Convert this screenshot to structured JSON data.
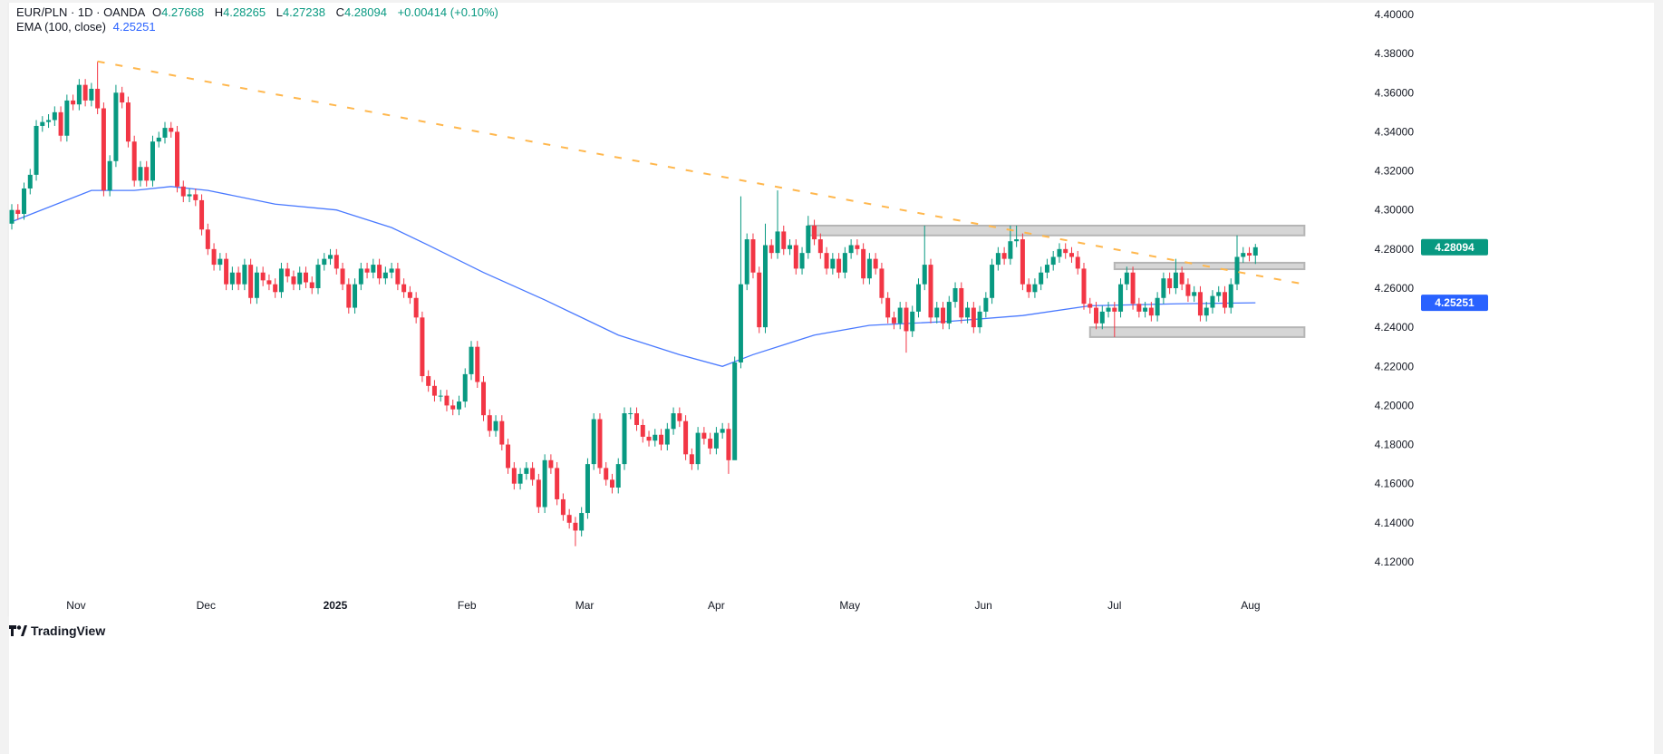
{
  "header": {
    "symbol": "EUR/PLN · 1D · OANDA",
    "open_label": "O",
    "open": "4.27668",
    "high_label": "H",
    "high": "4.28265",
    "low_label": "L",
    "low": "4.27238",
    "close_label": "C",
    "close": "4.28094",
    "change": "+0.00414 (+0.10%)",
    "ema_label": "EMA (100, close)",
    "ema_value": "4.25251"
  },
  "branding": {
    "logo_text": "TradingView"
  },
  "colors": {
    "up": "#089981",
    "down": "#f23645",
    "ema": "#2962ff",
    "trendline": "#ffb74d",
    "zone": "#d6d6d6"
  },
  "chart_data": {
    "type": "candlestick",
    "title": "EUR/PLN · 1D · OANDA",
    "ylim": [
      4.1,
      4.4
    ],
    "y_ticks": [
      "4.40000",
      "4.38000",
      "4.36000",
      "4.34000",
      "4.32000",
      "4.30000",
      "4.28000",
      "4.26000",
      "4.24000",
      "4.22000",
      "4.20000",
      "4.18000",
      "4.16000",
      "4.14000",
      "4.12000"
    ],
    "x_labels": [
      {
        "label": "Nov",
        "bar": 10.5
      },
      {
        "label": "Dec",
        "bar": 31.7
      },
      {
        "label": "2025",
        "bar": 52.8,
        "bold": true
      },
      {
        "label": "Feb",
        "bar": 74.3
      },
      {
        "label": "Mar",
        "bar": 93.5
      },
      {
        "label": "Apr",
        "bar": 115
      },
      {
        "label": "May",
        "bar": 136.8
      },
      {
        "label": "Jun",
        "bar": 158.6
      },
      {
        "label": "Jul",
        "bar": 180
      },
      {
        "label": "Aug",
        "bar": 202.2
      }
    ],
    "first_open": 4.293,
    "close": [
      4.3,
      4.298,
      4.311,
      4.318,
      4.343,
      4.345,
      4.346,
      4.35,
      4.338,
      4.356,
      4.354,
      4.364,
      4.356,
      4.362,
      4.352,
      4.31,
      4.325,
      4.36,
      4.355,
      4.335,
      4.315,
      4.322,
      4.315,
      4.335,
      4.337,
      4.342,
      4.34,
      4.312,
      4.307,
      4.308,
      4.305,
      4.29,
      4.28,
      4.272,
      4.275,
      4.262,
      4.268,
      4.262,
      4.272,
      4.255,
      4.268,
      4.264,
      4.262,
      4.258,
      4.27,
      4.266,
      4.262,
      4.268,
      4.263,
      4.26,
      4.272,
      4.275,
      4.277,
      4.27,
      4.262,
      4.25,
      4.262,
      4.27,
      4.268,
      4.272,
      4.265,
      4.268,
      4.27,
      4.262,
      4.258,
      4.255,
      4.245,
      4.215,
      4.21,
      4.205,
      4.205,
      4.2,
      4.198,
      4.202,
      4.216,
      4.23,
      4.212,
      4.195,
      4.187,
      4.192,
      4.18,
      4.168,
      4.16,
      4.165,
      4.168,
      4.162,
      4.148,
      4.172,
      4.168,
      4.152,
      4.144,
      4.14,
      4.136,
      4.145,
      4.17,
      4.193,
      4.168,
      4.162,
      4.158,
      4.17,
      4.196,
      4.196,
      4.19,
      4.184,
      4.182,
      4.185,
      4.18,
      4.188,
      4.196,
      4.192,
      4.175,
      4.17,
      4.186,
      4.183,
      4.178,
      4.186,
      4.188,
      4.172,
      4.222,
      4.262,
      4.285,
      4.268,
      4.24,
      4.282,
      4.278,
      4.289,
      4.28,
      4.282,
      4.27,
      4.278,
      4.292,
      4.285,
      4.278,
      4.27,
      4.275,
      4.268,
      4.278,
      4.282,
      4.28,
      4.265,
      4.275,
      4.27,
      4.255,
      4.245,
      4.242,
      4.25,
      4.238,
      4.248,
      4.262,
      4.272,
      4.245,
      4.25,
      4.242,
      4.253,
      4.26,
      4.245,
      4.25,
      4.24,
      4.248,
      4.255,
      4.272,
      4.278,
      4.275,
      4.284,
      4.285,
      4.262,
      4.258,
      4.262,
      4.268,
      4.272,
      4.276,
      4.28,
      4.278,
      4.276,
      4.27,
      4.252,
      4.25,
      4.242,
      4.248,
      4.25,
      4.248,
      4.262,
      4.268,
      4.252,
      4.248,
      4.25,
      4.246,
      4.255,
      4.265,
      4.26,
      4.268,
      4.262,
      4.256,
      4.258,
      4.246,
      4.25,
      4.256,
      4.258,
      4.25,
      4.262,
      4.276,
      4.278,
      4.2767,
      4.28094
    ],
    "wick_overrides": {
      "14": {
        "high": 4.376
      },
      "15": {
        "low": 4.307
      },
      "17": {
        "high": 4.364
      },
      "92": {
        "low": 4.128
      },
      "117": {
        "low": 4.165
      },
      "118": {
        "low": 4.218
      },
      "119": {
        "high": 4.307
      },
      "123": {
        "high": 4.293
      },
      "125": {
        "high": 4.31
      },
      "130": {
        "high": 4.297
      },
      "149": {
        "high": 4.292
      },
      "146": {
        "low": 4.227
      },
      "163": {
        "high": 4.292
      },
      "164": {
        "high": 4.292
      },
      "180": {
        "low": 4.235
      },
      "182": {
        "high": 4.271
      },
      "190": {
        "high": 4.275
      },
      "200": {
        "high": 4.287
      },
      "203": {
        "high": 4.28265,
        "low": 4.27238
      }
    },
    "ema_100": [
      {
        "bar": 0,
        "value": 4.294
      },
      {
        "bar": 13,
        "value": 4.31
      },
      {
        "bar": 20,
        "value": 4.31
      },
      {
        "bar": 26,
        "value": 4.312
      },
      {
        "bar": 32,
        "value": 4.31
      },
      {
        "bar": 43,
        "value": 4.303
      },
      {
        "bar": 53,
        "value": 4.3
      },
      {
        "bar": 62,
        "value": 4.291
      },
      {
        "bar": 68,
        "value": 4.282
      },
      {
        "bar": 77,
        "value": 4.268
      },
      {
        "bar": 87,
        "value": 4.254
      },
      {
        "bar": 99,
        "value": 4.236
      },
      {
        "bar": 109,
        "value": 4.226
      },
      {
        "bar": 116,
        "value": 4.22
      },
      {
        "bar": 121,
        "value": 4.226
      },
      {
        "bar": 131,
        "value": 4.236
      },
      {
        "bar": 140,
        "value": 4.241
      },
      {
        "bar": 153,
        "value": 4.243
      },
      {
        "bar": 165,
        "value": 4.246
      },
      {
        "bar": 176,
        "value": 4.251
      },
      {
        "bar": 190,
        "value": 4.252
      },
      {
        "bar": 203,
        "value": 4.25251
      }
    ],
    "trendline": {
      "from": {
        "bar": 14,
        "price": 4.376
      },
      "to": {
        "bar": 211,
        "price": 4.262
      }
    },
    "zones": [
      {
        "from_bar": 130,
        "to_bar": 211,
        "top": 4.292,
        "bottom": 4.287
      },
      {
        "from_bar": 180,
        "to_bar": 211,
        "top": 4.273,
        "bottom": 4.2697
      },
      {
        "from_bar": 176,
        "to_bar": 211,
        "top": 4.24,
        "bottom": 4.235
      }
    ],
    "price_labels": [
      {
        "value": 4.28094,
        "text": "4.28094",
        "color": "#089981"
      },
      {
        "value": 4.25251,
        "text": "4.25251",
        "color": "#2962ff"
      }
    ]
  }
}
